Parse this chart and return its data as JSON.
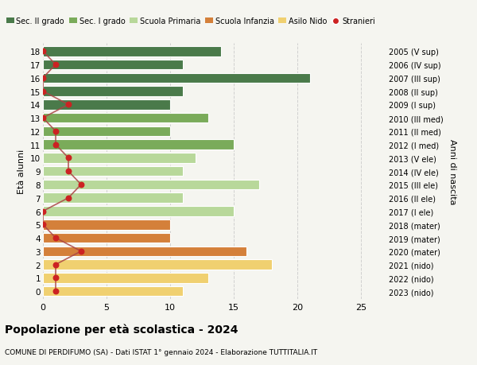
{
  "ages": [
    18,
    17,
    16,
    15,
    14,
    13,
    12,
    11,
    10,
    9,
    8,
    7,
    6,
    5,
    4,
    3,
    2,
    1,
    0
  ],
  "anni_nascita": [
    "2005 (V sup)",
    "2006 (IV sup)",
    "2007 (III sup)",
    "2008 (II sup)",
    "2009 (I sup)",
    "2010 (III med)",
    "2011 (II med)",
    "2012 (I med)",
    "2013 (V ele)",
    "2014 (IV ele)",
    "2015 (III ele)",
    "2016 (II ele)",
    "2017 (I ele)",
    "2018 (mater)",
    "2019 (mater)",
    "2020 (mater)",
    "2021 (nido)",
    "2022 (nido)",
    "2023 (nido)"
  ],
  "bar_values": [
    14,
    11,
    21,
    11,
    10,
    13,
    10,
    15,
    12,
    11,
    17,
    11,
    15,
    10,
    10,
    16,
    18,
    13,
    11
  ],
  "stranieri": [
    0,
    1,
    0,
    0,
    2,
    0,
    1,
    1,
    2,
    2,
    3,
    2,
    0,
    0,
    1,
    3,
    1,
    1,
    1
  ],
  "bar_colors": [
    "#4a7a4a",
    "#4a7a4a",
    "#4a7a4a",
    "#4a7a4a",
    "#4a7a4a",
    "#7aab5a",
    "#7aab5a",
    "#7aab5a",
    "#b8d89a",
    "#b8d89a",
    "#b8d89a",
    "#b8d89a",
    "#b8d89a",
    "#d4803a",
    "#d4803a",
    "#d4803a",
    "#f0d070",
    "#f0d070",
    "#f0d070"
  ],
  "legend_colors": [
    "#4a7a4a",
    "#7aab5a",
    "#b8d89a",
    "#d4803a",
    "#f0d070",
    "#cc2222"
  ],
  "legend_labels": [
    "Sec. II grado",
    "Sec. I grado",
    "Scuola Primaria",
    "Scuola Infanzia",
    "Asilo Nido",
    "Stranieri"
  ],
  "stranieri_color": "#cc2222",
  "stranieri_line_color": "#aa4444",
  "xlim": [
    0,
    27
  ],
  "title": "Popolazione per età scolastica - 2024",
  "subtitle": "COMUNE DI PERDIFUMO (SA) - Dati ISTAT 1° gennaio 2024 - Elaborazione TUTTITALIA.IT",
  "ylabel_left": "Età alunni",
  "ylabel_right": "Anni di nascita",
  "bg_color": "#f5f5f0"
}
